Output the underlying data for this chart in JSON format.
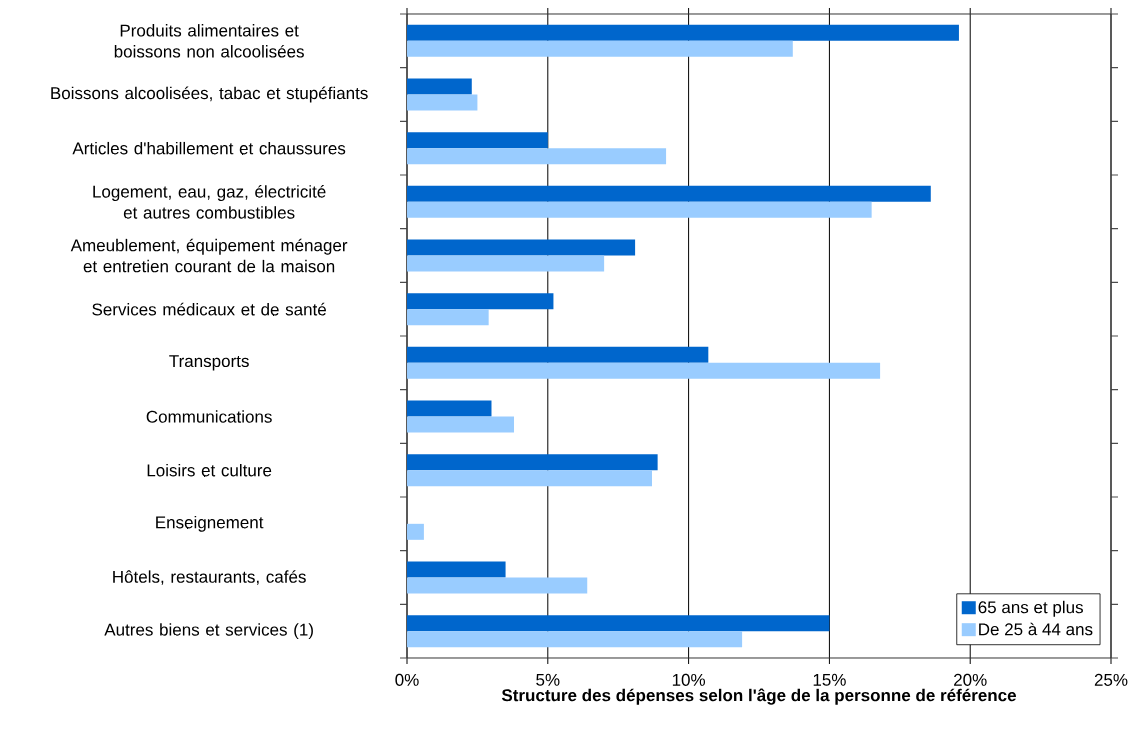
{
  "chart_data": {
    "type": "bar",
    "orientation": "horizontal",
    "xlabel": "Structure des dépenses selon l'âge de la personne de référence",
    "categories": [
      "Produits alimentaires et boissons non alcoolisées",
      "Boissons alcoolisées, tabac et stupéfiants",
      "Articles d'habillement et chaussures",
      "Logement, eau, gaz, électricité et autres combustibles",
      "Ameublement, équipement ménager et entretien courant de la maison",
      "Services médicaux et de santé",
      "Transports",
      "Communications",
      "Loisirs et culture",
      "Enseignement",
      "Hôtels, restaurants, cafés",
      "Autres biens et services (1)"
    ],
    "series": [
      {
        "name": "65 ans et plus",
        "color": "#0066cc",
        "values": [
          19.6,
          2.3,
          5.0,
          18.6,
          8.1,
          5.2,
          10.7,
          3.0,
          8.9,
          null,
          3.5,
          15.0
        ]
      },
      {
        "name": "De 25 à 44 ans",
        "color": "#99ccff",
        "values": [
          13.7,
          2.5,
          9.2,
          16.5,
          7.0,
          2.9,
          16.8,
          3.8,
          8.7,
          0.6,
          6.4,
          11.9
        ]
      }
    ],
    "xlim": [
      0,
      25
    ],
    "xticks": [
      {
        "value": 0,
        "label": "0%"
      },
      {
        "value": 5,
        "label": "5%"
      },
      {
        "value": 10,
        "label": "10%"
      },
      {
        "value": 15,
        "label": "15%"
      },
      {
        "value": 20,
        "label": "20%"
      },
      {
        "value": 25,
        "label": "25%"
      }
    ],
    "grid": "x",
    "legend": "bottom right"
  }
}
